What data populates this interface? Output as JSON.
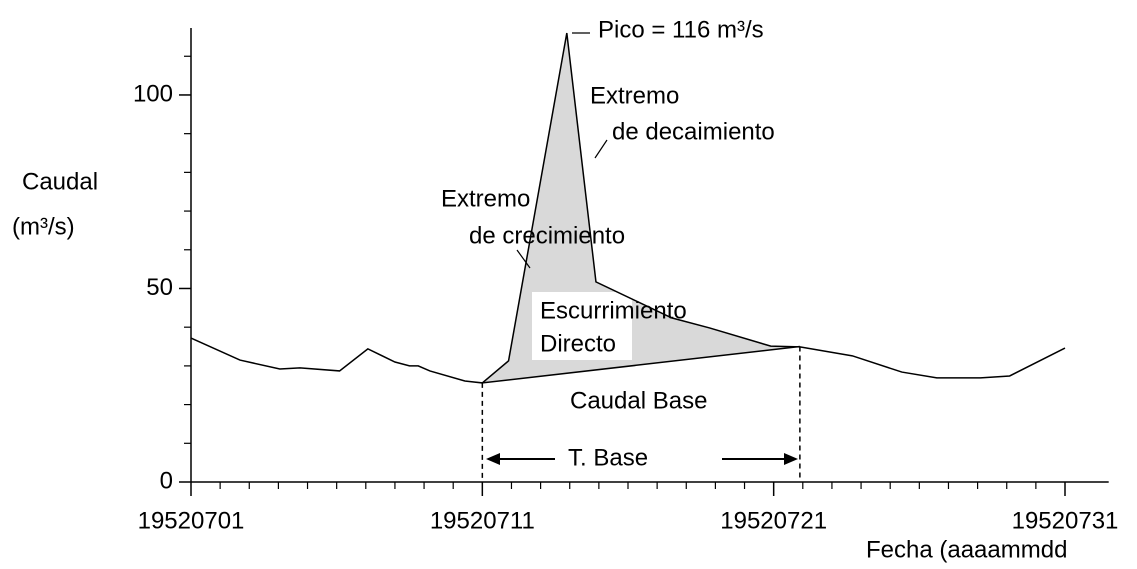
{
  "chart_data": {
    "type": "line",
    "x": [
      1,
      2.68,
      4.05,
      4.74,
      6.1,
      7.07,
      8.0,
      8.5,
      8.8,
      9.2,
      10.4,
      11,
      11.9,
      13.9,
      14.9,
      17.5,
      18.8,
      20.9,
      21.9,
      23.7,
      25.4,
      26.6,
      28.1,
      29.1,
      31
    ],
    "values": [
      37.2,
      31.5,
      29.2,
      29.5,
      28.7,
      34.4,
      31,
      30,
      30,
      28.7,
      26.1,
      25.6,
      31.3,
      116,
      51.7,
      42.4,
      39.8,
      35.1,
      34.9,
      32.6,
      28.4,
      26.9,
      26.9,
      27.4,
      34.6
    ],
    "color": "#000000",
    "baseflow": {
      "x": [
        11,
        21.9
      ],
      "values": [
        25.6,
        35.0
      ]
    },
    "fill_color": "#d9d9d9",
    "xlim": [
      1,
      32.5
    ],
    "ylim": [
      0,
      117.3
    ],
    "xticks": [
      {
        "value": 1,
        "label": "19520701"
      },
      {
        "value": 11,
        "label": "19520711"
      },
      {
        "value": 21,
        "label": "19520721"
      },
      {
        "value": 31,
        "label": "19520731"
      }
    ],
    "xminorticks": [
      2,
      3,
      4,
      5,
      6,
      7,
      8,
      9,
      10,
      12,
      13,
      14,
      15,
      16,
      17,
      18,
      19,
      20,
      22,
      23,
      24,
      25,
      26,
      27,
      28,
      29,
      30
    ],
    "yticks": [
      0,
      50,
      100
    ],
    "yminorticks": [
      10,
      20,
      30,
      40,
      60,
      70,
      80,
      90,
      110
    ],
    "y_label": [
      "Caudal",
      "(m³/s)"
    ],
    "x_label": "Fecha (aaaammdd",
    "annotations": [
      "Pico = 116 m³/s",
      "Extremo",
      "de decaimiento",
      "Extremo",
      "de crecimiento",
      "Escurrimiento",
      "Directo",
      "Caudal Base",
      "T. Base"
    ]
  }
}
